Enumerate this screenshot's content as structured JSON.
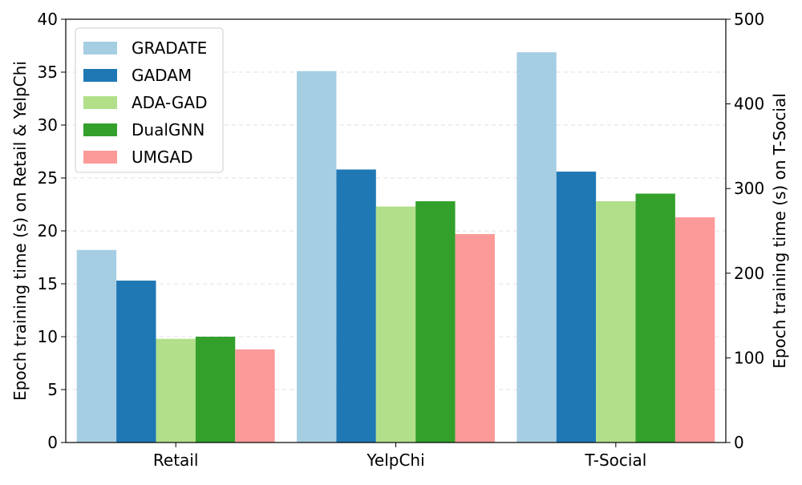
{
  "chart_data": {
    "type": "bar",
    "categories": [
      "Retail",
      "YelpChi",
      "T-Social"
    ],
    "series": [
      {
        "name": "GRADATE",
        "color": "#a6cee3",
        "values": [
          18.2,
          35.1,
          461
        ]
      },
      {
        "name": "GADAM",
        "color": "#1f78b4",
        "values": [
          15.3,
          25.8,
          320
        ]
      },
      {
        "name": "ADA-GAD",
        "color": "#b2df8a",
        "values": [
          9.8,
          22.3,
          285
        ]
      },
      {
        "name": "DualGNN",
        "color": "#33a02c",
        "values": [
          10.0,
          22.8,
          294
        ]
      },
      {
        "name": "UMGAD",
        "color": "#fb9a99",
        "values": [
          8.8,
          19.7,
          266
        ]
      }
    ],
    "right_axis_categories": [
      "T-Social"
    ],
    "ylabel_left": "Epoch training time (s) on Retail & YelpChi",
    "ylabel_right": "Epoch training time (s) on T-Social",
    "ylim_left": [
      0,
      40
    ],
    "ylim_right": [
      0,
      500
    ],
    "yticks_left": [
      "0",
      "5",
      "10",
      "15",
      "20",
      "25",
      "30",
      "35",
      "40"
    ],
    "yticks_right": [
      "0",
      "100",
      "200",
      "300",
      "400",
      "500"
    ],
    "grid": true,
    "legend_position": "top-left"
  }
}
